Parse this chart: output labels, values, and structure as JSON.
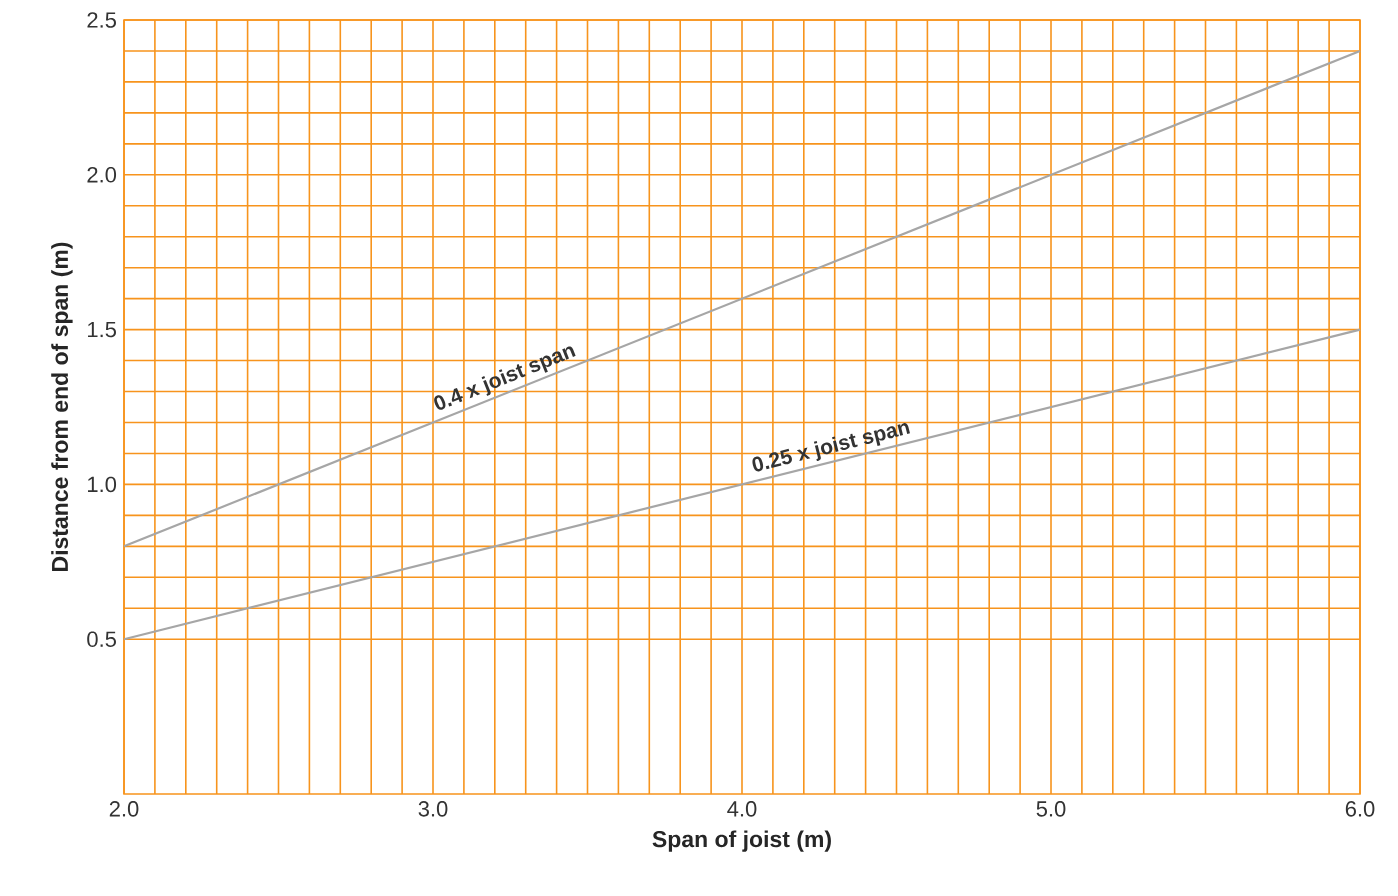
{
  "chart_data": {
    "type": "line",
    "xlabel": "Span of joist (m)",
    "ylabel": "Distance from end of span (m)",
    "x": [
      2,
      6
    ],
    "series": [
      {
        "color": "#a6a6a6",
        "values": [
          0.8,
          2.4
        ]
      },
      {
        "color": "#a6a6a6",
        "values": [
          0.5,
          1.5
        ]
      }
    ],
    "xlim": [
      2,
      6
    ],
    "ylim": [
      0,
      2.5
    ],
    "xticks": [
      {
        "value": 2,
        "label": "2.0"
      },
      {
        "value": 3,
        "label": "3.0"
      },
      {
        "value": 4,
        "label": "4.0"
      },
      {
        "value": 5,
        "label": "5.0"
      },
      {
        "value": 6,
        "label": "6.0"
      }
    ],
    "yticks": [
      {
        "value": 0.5,
        "label": "0.5"
      },
      {
        "value": 1,
        "label": "1.0"
      },
      {
        "value": 1.5,
        "label": "1.5"
      },
      {
        "value": 2,
        "label": "2.0"
      },
      {
        "value": 2.5,
        "label": "2.5"
      }
    ],
    "grid": true,
    "marker": "none",
    "line_style": "solid",
    "annotations": [
      {
        "text": "0.4 x joist span",
        "x": 3.25,
        "y": 1.3
      },
      {
        "text": "0.25 x joist span",
        "x": 4.3,
        "y": 1.075
      }
    ]
  }
}
